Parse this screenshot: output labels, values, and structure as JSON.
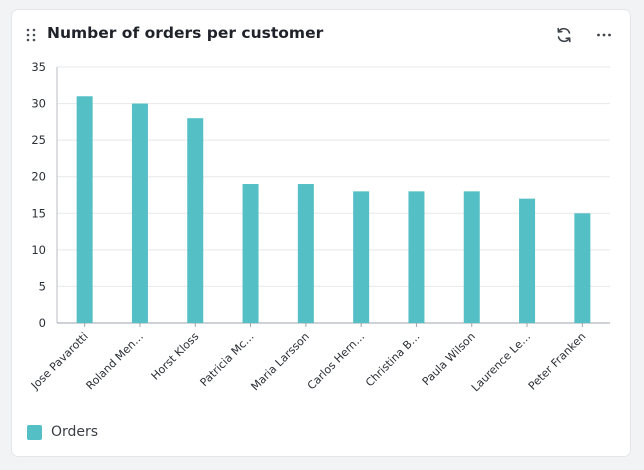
{
  "header": {
    "title": "Number of orders per customer"
  },
  "legend": {
    "label": "Orders",
    "color": "#55bfc6"
  },
  "chart_data": {
    "type": "bar",
    "title": "Number of orders per customer",
    "xlabel": "",
    "ylabel": "",
    "categories": [
      "Jose Pavarotti",
      "Roland Men…",
      "Horst Kloss",
      "Patricia Mc…",
      "Maria Larsson",
      "Carlos Hern…",
      "Christina B…",
      "Paula Wilson",
      "Laurence Le…",
      "Peter Franken"
    ],
    "series": [
      {
        "name": "Orders",
        "values": [
          31,
          30,
          28,
          19,
          19,
          18,
          18,
          18,
          17,
          15
        ],
        "color": "#55bfc6"
      }
    ],
    "ylim": [
      0,
      35
    ],
    "yticks": [
      0,
      5,
      10,
      15,
      20,
      25,
      30,
      35
    ],
    "grid": true,
    "legend": "bottom-left"
  }
}
